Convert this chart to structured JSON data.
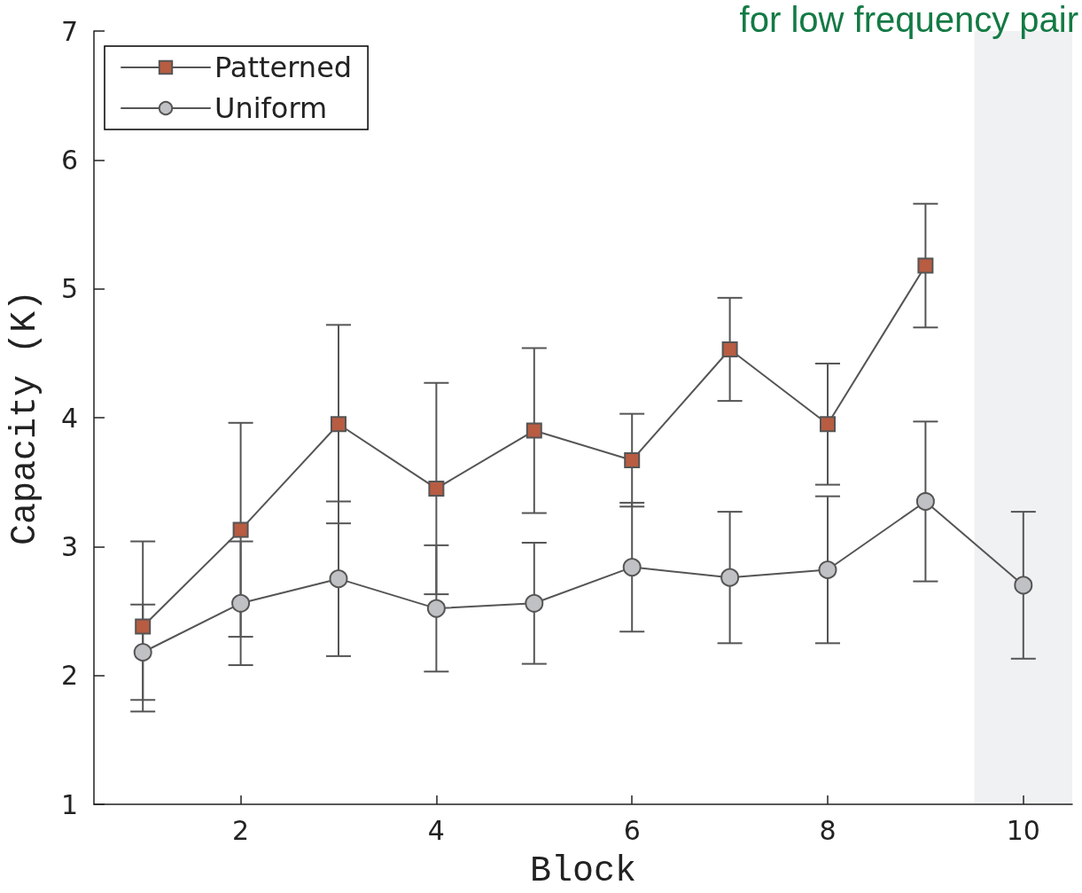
{
  "chart_data": {
    "type": "line",
    "xlabel": "Block",
    "ylabel": "Capacity (K)",
    "annotations": [
      "for low frequency pair"
    ],
    "x": [
      1,
      2,
      3,
      4,
      5,
      6,
      7,
      8,
      9,
      10
    ],
    "series": [
      {
        "name": "Patterned",
        "color": "#b85c42",
        "marker": "square",
        "values": [
          2.38,
          3.13,
          3.95,
          3.45,
          3.9,
          3.67,
          4.53,
          3.95,
          5.18,
          null
        ],
        "errors": [
          0.66,
          0.83,
          0.77,
          0.82,
          0.64,
          0.36,
          0.4,
          0.47,
          0.48,
          null
        ]
      },
      {
        "name": "Uniform",
        "color": "#c0c1c5",
        "marker": "circle",
        "values": [
          2.18,
          2.56,
          2.75,
          2.52,
          2.56,
          2.84,
          2.76,
          2.82,
          3.35,
          2.7
        ],
        "errors": [
          0.37,
          0.48,
          0.6,
          0.49,
          0.47,
          0.5,
          0.51,
          0.57,
          0.62,
          0.57
        ]
      }
    ],
    "xlim": [
      0.5,
      10.5
    ],
    "xticks": [
      2,
      4,
      6,
      8,
      10
    ],
    "ylim": [
      1,
      7
    ],
    "yticks": [
      1,
      2,
      3,
      4,
      5,
      6,
      7
    ],
    "bands": [
      {
        "axis": "x",
        "from": 9.5,
        "to": 10.5,
        "color": "#f0f1f2"
      }
    ],
    "grid": false,
    "legend": "top left",
    "line_style": "solid"
  }
}
